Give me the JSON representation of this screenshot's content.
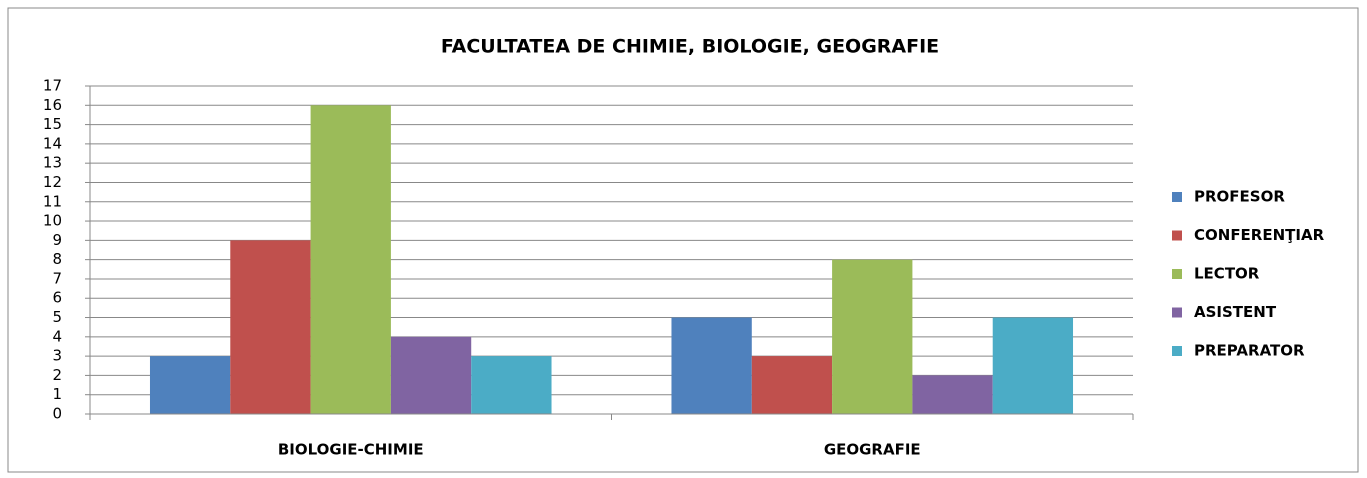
{
  "chart_data": {
    "type": "bar",
    "title": "FACULTATEA DE CHIMIE, BIOLOGIE, GEOGRAFIE",
    "categories": [
      "BIOLOGIE-CHIMIE",
      "GEOGRAFIE"
    ],
    "series": [
      {
        "name": "PROFESOR",
        "color": "#4f81bd",
        "values": [
          3,
          5
        ]
      },
      {
        "name": "CONFERENŢIAR",
        "color": "#c0504d",
        "values": [
          9,
          3
        ]
      },
      {
        "name": "LECTOR",
        "color": "#9bbb59",
        "values": [
          16,
          8
        ]
      },
      {
        "name": "ASISTENT",
        "color": "#8064a2",
        "values": [
          4,
          2
        ]
      },
      {
        "name": "PREPARATOR",
        "color": "#4bacc6",
        "values": [
          3,
          5
        ]
      }
    ],
    "ylim": [
      0,
      17
    ],
    "yticks": [
      0,
      1,
      2,
      3,
      4,
      5,
      6,
      7,
      8,
      9,
      10,
      11,
      12,
      13,
      14,
      15,
      16,
      17
    ],
    "grid": true,
    "legend": "right"
  }
}
